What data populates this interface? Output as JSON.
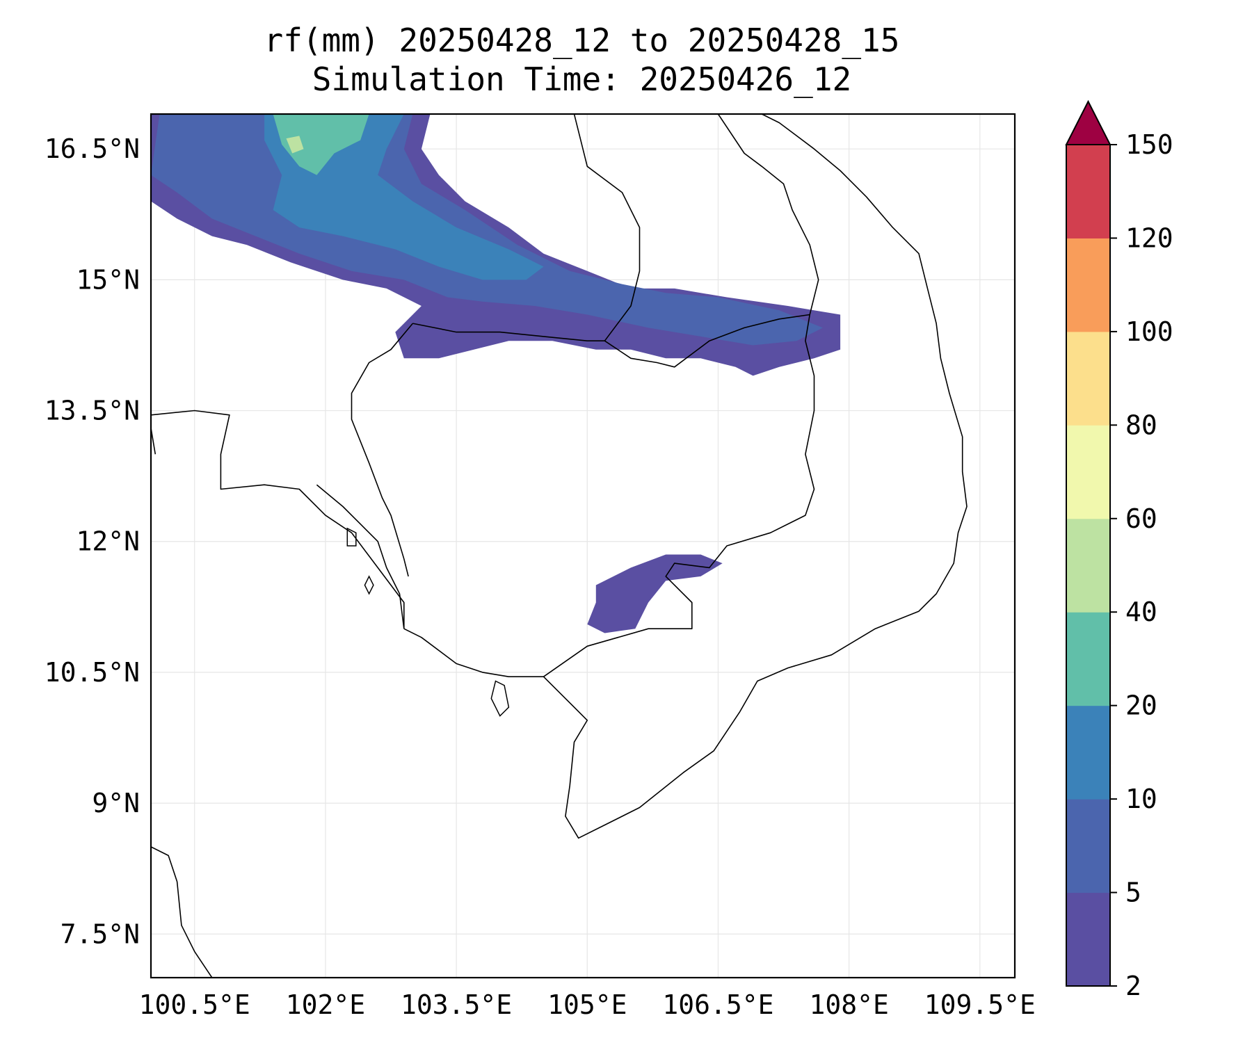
{
  "title": {
    "line1": "rf(mm) 20250428_12 to 20250428_15",
    "line2": "Simulation Time: 20250426_12"
  },
  "map": {
    "lon_range": [
      100.0,
      109.9
    ],
    "lat_range": [
      7.0,
      16.9
    ],
    "x_ticks": [
      {
        "value": 100.5,
        "label": "100.5°E"
      },
      {
        "value": 102.0,
        "label": "102°E"
      },
      {
        "value": 103.5,
        "label": "103.5°E"
      },
      {
        "value": 105.0,
        "label": "105°E"
      },
      {
        "value": 106.5,
        "label": "106.5°E"
      },
      {
        "value": 108.0,
        "label": "108°E"
      },
      {
        "value": 109.5,
        "label": "109.5°E"
      }
    ],
    "y_ticks": [
      {
        "value": 16.5,
        "label": "16.5°N"
      },
      {
        "value": 15.0,
        "label": "15°N"
      },
      {
        "value": 13.5,
        "label": "13.5°N"
      },
      {
        "value": 12.0,
        "label": "12°N"
      },
      {
        "value": 10.5,
        "label": "10.5°N"
      },
      {
        "value": 9.0,
        "label": "9°N"
      },
      {
        "value": 7.5,
        "label": "7.5°N"
      }
    ],
    "grid": true,
    "rain_regions": [
      {
        "level": "2-5",
        "name": "north-band",
        "points": [
          [
            100.0,
            16.9
          ],
          [
            103.2,
            16.9
          ],
          [
            103.1,
            16.5
          ],
          [
            103.3,
            16.2
          ],
          [
            103.6,
            15.9
          ],
          [
            104.1,
            15.6
          ],
          [
            104.5,
            15.3
          ],
          [
            105.0,
            15.1
          ],
          [
            105.5,
            14.9
          ],
          [
            106.0,
            14.9
          ],
          [
            106.6,
            14.8
          ],
          [
            107.3,
            14.7
          ],
          [
            107.9,
            14.6
          ],
          [
            107.9,
            14.2
          ],
          [
            107.6,
            14.1
          ],
          [
            107.2,
            14.0
          ],
          [
            106.9,
            13.9
          ],
          [
            106.7,
            14.0
          ],
          [
            106.3,
            14.1
          ],
          [
            105.9,
            14.1
          ],
          [
            105.5,
            14.2
          ],
          [
            105.1,
            14.2
          ],
          [
            104.6,
            14.3
          ],
          [
            104.1,
            14.3
          ],
          [
            103.7,
            14.2
          ],
          [
            103.3,
            14.1
          ],
          [
            102.9,
            14.1
          ],
          [
            102.8,
            14.4
          ],
          [
            103.1,
            14.7
          ],
          [
            102.7,
            14.9
          ],
          [
            102.2,
            15.0
          ],
          [
            101.6,
            15.2
          ],
          [
            101.1,
            15.4
          ],
          [
            100.7,
            15.5
          ],
          [
            100.3,
            15.7
          ],
          [
            100.0,
            15.9
          ]
        ]
      },
      {
        "level": "5-10",
        "name": "north-core",
        "points": [
          [
            100.1,
            16.9
          ],
          [
            103.0,
            16.9
          ],
          [
            102.9,
            16.5
          ],
          [
            103.1,
            16.1
          ],
          [
            103.6,
            15.8
          ],
          [
            104.2,
            15.4
          ],
          [
            104.8,
            15.1
          ],
          [
            105.4,
            14.95
          ],
          [
            105.9,
            14.85
          ],
          [
            106.5,
            14.8
          ],
          [
            107.2,
            14.65
          ],
          [
            107.7,
            14.45
          ],
          [
            107.4,
            14.3
          ],
          [
            106.9,
            14.25
          ],
          [
            106.3,
            14.35
          ],
          [
            105.7,
            14.45
          ],
          [
            105.0,
            14.6
          ],
          [
            104.4,
            14.7
          ],
          [
            103.8,
            14.75
          ],
          [
            103.4,
            14.8
          ],
          [
            102.9,
            15.0
          ],
          [
            102.3,
            15.1
          ],
          [
            101.7,
            15.3
          ],
          [
            101.2,
            15.5
          ],
          [
            100.7,
            15.7
          ],
          [
            100.3,
            16.0
          ],
          [
            100.0,
            16.2
          ]
        ]
      },
      {
        "level": "10-20",
        "name": "north-heavy",
        "points": [
          [
            101.3,
            16.9
          ],
          [
            102.9,
            16.9
          ],
          [
            102.7,
            16.5
          ],
          [
            102.6,
            16.2
          ],
          [
            103.0,
            15.9
          ],
          [
            103.5,
            15.6
          ],
          [
            104.1,
            15.35
          ],
          [
            104.5,
            15.15
          ],
          [
            104.3,
            15.0
          ],
          [
            103.8,
            15.0
          ],
          [
            103.3,
            15.15
          ],
          [
            102.8,
            15.35
          ],
          [
            102.2,
            15.5
          ],
          [
            101.7,
            15.6
          ],
          [
            101.4,
            15.8
          ],
          [
            101.5,
            16.2
          ],
          [
            101.3,
            16.6
          ]
        ]
      },
      {
        "level": "20-40",
        "name": "north-peak",
        "points": [
          [
            101.4,
            16.9
          ],
          [
            102.5,
            16.9
          ],
          [
            102.4,
            16.6
          ],
          [
            102.1,
            16.45
          ],
          [
            101.9,
            16.2
          ],
          [
            101.7,
            16.3
          ],
          [
            101.5,
            16.55
          ]
        ]
      },
      {
        "level": "40-60",
        "name": "north-peak-inner",
        "points": [
          [
            101.55,
            16.62
          ],
          [
            101.7,
            16.65
          ],
          [
            101.75,
            16.5
          ],
          [
            101.62,
            16.45
          ]
        ]
      },
      {
        "level": "2-5",
        "name": "south-patch",
        "points": [
          [
            105.1,
            11.5
          ],
          [
            105.5,
            11.7
          ],
          [
            105.9,
            11.85
          ],
          [
            106.3,
            11.85
          ],
          [
            106.55,
            11.75
          ],
          [
            106.3,
            11.6
          ],
          [
            105.9,
            11.55
          ],
          [
            105.7,
            11.3
          ],
          [
            105.55,
            11.0
          ],
          [
            105.2,
            10.95
          ],
          [
            105.0,
            11.05
          ],
          [
            105.1,
            11.3
          ]
        ]
      }
    ],
    "country_borders": [
      [
        [
          103.0,
          14.5
        ],
        [
          103.5,
          14.4
        ],
        [
          104.0,
          14.4
        ],
        [
          104.5,
          14.35
        ],
        [
          105.0,
          14.3
        ],
        [
          105.2,
          14.3
        ],
        [
          105.5,
          14.1
        ],
        [
          105.8,
          14.05
        ],
        [
          106.0,
          14.0
        ],
        [
          106.4,
          14.3
        ],
        [
          106.8,
          14.45
        ],
        [
          107.2,
          14.55
        ],
        [
          107.55,
          14.6
        ],
        [
          107.5,
          14.3
        ],
        [
          107.6,
          13.9
        ],
        [
          107.6,
          13.5
        ],
        [
          107.5,
          13.0
        ],
        [
          107.6,
          12.6
        ],
        [
          107.5,
          12.3
        ],
        [
          107.1,
          12.1
        ],
        [
          106.6,
          11.95
        ],
        [
          106.4,
          11.7
        ],
        [
          106.0,
          11.75
        ],
        [
          105.9,
          11.6
        ],
        [
          106.2,
          11.3
        ],
        [
          106.2,
          11.0
        ],
        [
          105.7,
          11.0
        ],
        [
          105.0,
          10.8
        ],
        [
          104.5,
          10.45
        ]
      ],
      [
        [
          103.0,
          14.5
        ],
        [
          102.75,
          14.2
        ],
        [
          102.5,
          14.05
        ],
        [
          102.3,
          13.7
        ],
        [
          102.3,
          13.4
        ],
        [
          102.5,
          12.9
        ],
        [
          102.65,
          12.5
        ],
        [
          102.75,
          12.3
        ],
        [
          102.9,
          11.8
        ],
        [
          102.95,
          11.6
        ]
      ],
      [
        [
          107.55,
          14.6
        ],
        [
          107.65,
          15.0
        ],
        [
          107.55,
          15.4
        ],
        [
          107.35,
          15.8
        ],
        [
          107.25,
          16.1
        ],
        [
          107.0,
          16.3
        ],
        [
          106.8,
          16.45
        ],
        [
          106.5,
          16.9
        ]
      ],
      [
        [
          105.2,
          14.3
        ],
        [
          105.5,
          14.7
        ],
        [
          105.6,
          15.1
        ],
        [
          105.6,
          15.6
        ],
        [
          105.4,
          16.0
        ],
        [
          105.0,
          16.3
        ],
        [
          104.85,
          16.9
        ]
      ],
      [
        [
          100.0,
          13.45
        ],
        [
          100.5,
          13.5
        ],
        [
          100.9,
          13.45
        ],
        [
          100.8,
          13.0
        ],
        [
          100.8,
          12.6
        ],
        [
          101.3,
          12.65
        ],
        [
          101.7,
          12.6
        ],
        [
          102.0,
          12.3
        ],
        [
          102.3,
          12.1
        ],
        [
          102.6,
          11.7
        ],
        [
          102.9,
          11.3
        ],
        [
          102.9,
          11.0
        ]
      ]
    ],
    "coastlines": [
      [
        [
          102.9,
          11.0
        ],
        [
          103.1,
          10.9
        ],
        [
          103.5,
          10.6
        ],
        [
          103.8,
          10.5
        ],
        [
          104.1,
          10.45
        ],
        [
          104.5,
          10.45
        ],
        [
          104.8,
          10.15
        ],
        [
          105.0,
          9.95
        ],
        [
          104.85,
          9.7
        ],
        [
          104.8,
          9.2
        ],
        [
          104.75,
          8.85
        ],
        [
          104.9,
          8.6
        ],
        [
          105.2,
          8.75
        ],
        [
          105.6,
          8.95
        ],
        [
          106.1,
          9.35
        ],
        [
          106.45,
          9.6
        ],
        [
          106.75,
          10.05
        ],
        [
          106.95,
          10.4
        ],
        [
          107.3,
          10.55
        ],
        [
          107.8,
          10.7
        ],
        [
          108.3,
          11.0
        ],
        [
          108.8,
          11.2
        ],
        [
          109.0,
          11.4
        ],
        [
          109.2,
          11.75
        ],
        [
          109.25,
          12.1
        ],
        [
          109.35,
          12.4
        ],
        [
          109.3,
          12.8
        ],
        [
          109.3,
          13.2
        ],
        [
          109.15,
          13.7
        ],
        [
          109.05,
          14.1
        ],
        [
          109.0,
          14.5
        ],
        [
          108.9,
          14.9
        ],
        [
          108.8,
          15.3
        ],
        [
          108.5,
          15.6
        ],
        [
          108.2,
          15.95
        ],
        [
          107.9,
          16.25
        ],
        [
          107.6,
          16.5
        ],
        [
          107.2,
          16.8
        ],
        [
          107.0,
          16.9
        ]
      ],
      [
        [
          102.9,
          11.0
        ],
        [
          102.85,
          11.4
        ],
        [
          102.7,
          11.7
        ],
        [
          102.6,
          12.0
        ],
        [
          102.4,
          12.2
        ],
        [
          102.2,
          12.4
        ],
        [
          101.9,
          12.65
        ]
      ],
      [
        [
          100.0,
          8.5
        ],
        [
          100.2,
          8.4
        ],
        [
          100.3,
          8.1
        ],
        [
          100.35,
          7.6
        ],
        [
          100.5,
          7.3
        ],
        [
          100.7,
          7.0
        ]
      ],
      [
        [
          100.0,
          13.3
        ],
        [
          100.05,
          13.0
        ]
      ]
    ],
    "islands": [
      [
        [
          103.95,
          10.4
        ],
        [
          104.05,
          10.35
        ],
        [
          104.1,
          10.1
        ],
        [
          104.0,
          10.0
        ],
        [
          103.9,
          10.2
        ]
      ],
      [
        [
          102.25,
          12.15
        ],
        [
          102.35,
          12.1
        ],
        [
          102.35,
          11.95
        ],
        [
          102.25,
          11.95
        ]
      ],
      [
        [
          102.5,
          11.6
        ],
        [
          102.55,
          11.5
        ],
        [
          102.5,
          11.4
        ],
        [
          102.45,
          11.5
        ]
      ]
    ]
  },
  "colorbar": {
    "labels": [
      "2",
      "5",
      "10",
      "20",
      "40",
      "60",
      "80",
      "100",
      "120",
      "150"
    ],
    "colors": [
      "#5a4fa2",
      "#4b65ae",
      "#3b82b9",
      "#61bfa9",
      "#bde2a2",
      "#f1f8ad",
      "#fcdf8c",
      "#f99d5a",
      "#d23f4f",
      "#9e0142"
    ],
    "extend": "max"
  },
  "level_colors": {
    "2-5": "#5a4fa2",
    "5-10": "#4b65ae",
    "10-20": "#3b82b9",
    "20-40": "#61bfa9",
    "40-60": "#bde2a2"
  }
}
